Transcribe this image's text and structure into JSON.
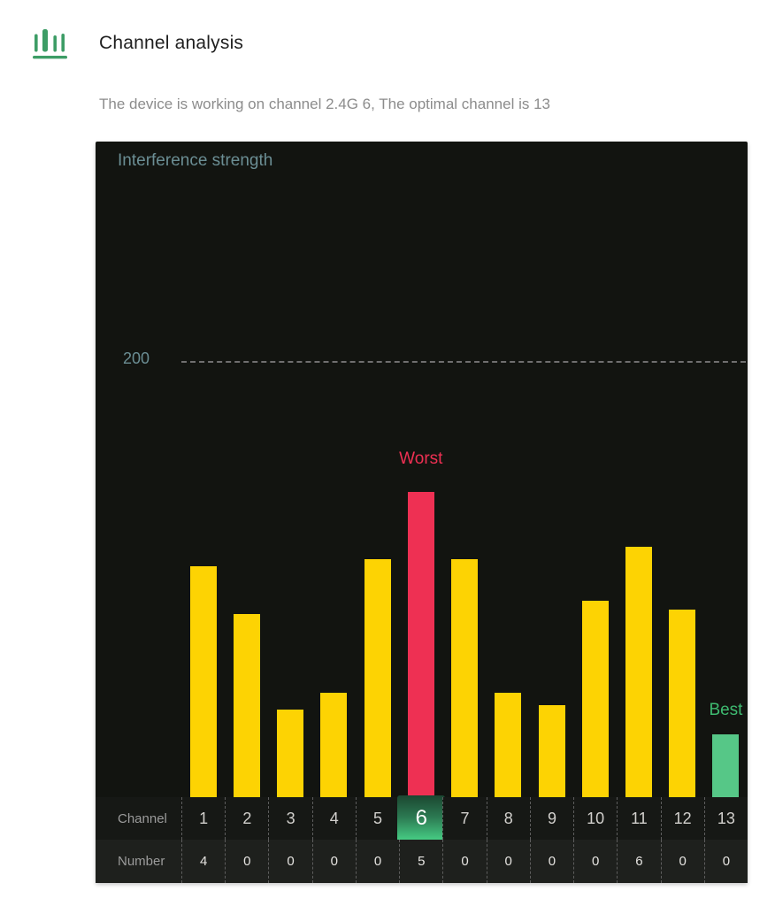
{
  "header": {
    "icon": "bar-chart-icon",
    "title": "Channel analysis",
    "subtitle": "The device is working on channel 2.4G 6, The optimal channel is 13"
  },
  "chart": {
    "panel_title": "Interference strength",
    "threshold_label": "200",
    "worst_label": "Worst",
    "best_label": "Best",
    "channel_row_label": "Channel",
    "number_row_label": "Number"
  },
  "chart_data": {
    "type": "bar",
    "title": "Interference strength",
    "categories": [
      1,
      2,
      3,
      4,
      5,
      6,
      7,
      8,
      9,
      10,
      11,
      12,
      13
    ],
    "values": [
      106,
      84,
      40,
      48,
      109,
      140,
      109,
      48,
      42,
      90,
      115,
      86,
      29
    ],
    "numbers": [
      4,
      0,
      0,
      0,
      0,
      5,
      0,
      0,
      0,
      0,
      6,
      0,
      0
    ],
    "threshold": 200,
    "ylim": [
      0,
      300
    ],
    "grid": "threshold-dashed-line-only",
    "worst_channel": 6,
    "best_channel": 13,
    "current_channel": 6,
    "bar_colors": {
      "default": "#fdd303",
      "worst": "#ee3053",
      "best": "#56c787"
    },
    "annotation_colors": {
      "worst": "#ee3053",
      "best": "#3eba70"
    },
    "panel_background": "#121410",
    "accent_green": "#3d9d66"
  }
}
